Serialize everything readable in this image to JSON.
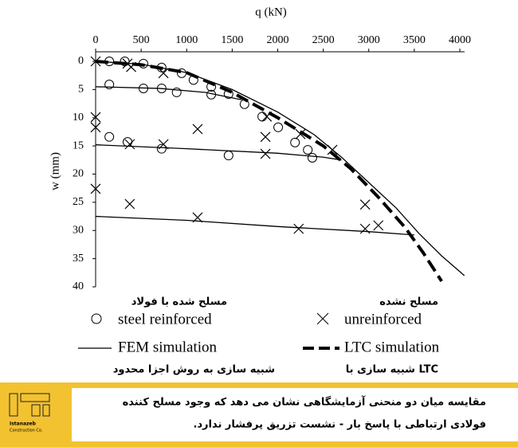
{
  "chart_data": {
    "type": "scatter-line",
    "xlabel": "q (kN)",
    "ylabel": "w (mm)",
    "xlim": [
      0,
      4000
    ],
    "xticks": [
      0,
      500,
      1000,
      1500,
      2000,
      2500,
      3000,
      3500,
      4000
    ],
    "ylim": [
      0,
      40
    ],
    "yticks": [
      0,
      5,
      10,
      15,
      20,
      25,
      30,
      35,
      40
    ],
    "y_inverted": true,
    "x_axis_position": "top",
    "series": [
      {
        "name": "steel reinforced",
        "note": "مسلح شده با فولاد",
        "marker": "circle",
        "color": "#000000",
        "x": [
          150,
          320,
          525,
          725,
          945,
          1075,
          1270,
          1460,
          1635,
          1830,
          2005,
          2190,
          2330,
          2380,
          150,
          525,
          725,
          890,
          1270,
          150,
          350,
          725,
          1460
        ],
        "y": [
          0,
          0,
          0.4,
          1.1,
          2.1,
          3.3,
          4.5,
          5.8,
          7.6,
          9.8,
          11.7,
          14.4,
          15.7,
          17.1,
          4.1,
          4.8,
          4.8,
          5.5,
          5.9,
          13.4,
          14.3,
          15.5,
          16.7
        ]
      },
      {
        "name": "unreinforced",
        "note": "مسلح نشده",
        "marker": "x",
        "color": "#000000",
        "x": [
          0,
          350,
          390,
          745,
          1880,
          2250,
          2600,
          0,
          0,
          0,
          375,
          745,
          1120,
          1865,
          1865,
          375,
          1120,
          2230,
          2960,
          2960,
          3105
        ],
        "y": [
          0,
          0.4,
          1,
          2.1,
          9.8,
          12.9,
          15.7,
          9.9,
          11.7,
          22.6,
          14.7,
          14.7,
          12,
          13.4,
          16.4,
          25.3,
          27.7,
          29.7,
          25.4,
          29.7,
          29.1
        ]
      },
      {
        "name": "FEM simulation",
        "note": "شبیه سازی به روش اجزا محدود",
        "style": "solid",
        "color": "#000000",
        "curves": [
          {
            "x": [
              0,
              500,
              1000,
              1500,
              2000,
              2400,
              2700,
              3000,
              3300,
              3550,
              3800,
              4050
            ],
            "y": [
              0,
              0.5,
              2,
              5,
              9,
              13,
              17,
              21.5,
              26,
              30.5,
              34.5,
              38
            ]
          },
          {
            "x": [
              0,
              700,
              1200,
              1600
            ],
            "y": [
              4.5,
              4.8,
              5.5,
              6.8
            ]
          },
          {
            "x": [
              0,
              1000,
              2000,
              2500,
              2700
            ],
            "y": [
              14.8,
              15.5,
              16.3,
              17,
              17.5
            ]
          },
          {
            "x": [
              0,
              1000,
              2000,
              3000,
              3500
            ],
            "y": [
              27.5,
              28.2,
              29.3,
              30.2,
              30.8
            ]
          }
        ]
      },
      {
        "name": "LTC simulation",
        "note": "LTC شبیه سازی با",
        "style": "dashed",
        "color": "#000000",
        "curves": [
          {
            "x": [
              0,
              500,
              1000,
              1500,
              2000,
              2500,
              2800,
              3100,
              3400,
              3600,
              3800
            ],
            "y": [
              0,
              0.6,
              2,
              5.5,
              10,
              15,
              19,
              24,
              29.5,
              34,
              39
            ]
          }
        ]
      }
    ]
  },
  "caption": {
    "lines": [
      "مقایسه میان دو منحنی آزمایشگاهی نشان می دهد که وجود مسلح کننده",
      "فولادی ارتباطی با پاسخ بار - نشست تزریق پرفشار ندارد."
    ]
  },
  "logo": {
    "name": "Istanazeb",
    "sub": "Construction Co."
  }
}
